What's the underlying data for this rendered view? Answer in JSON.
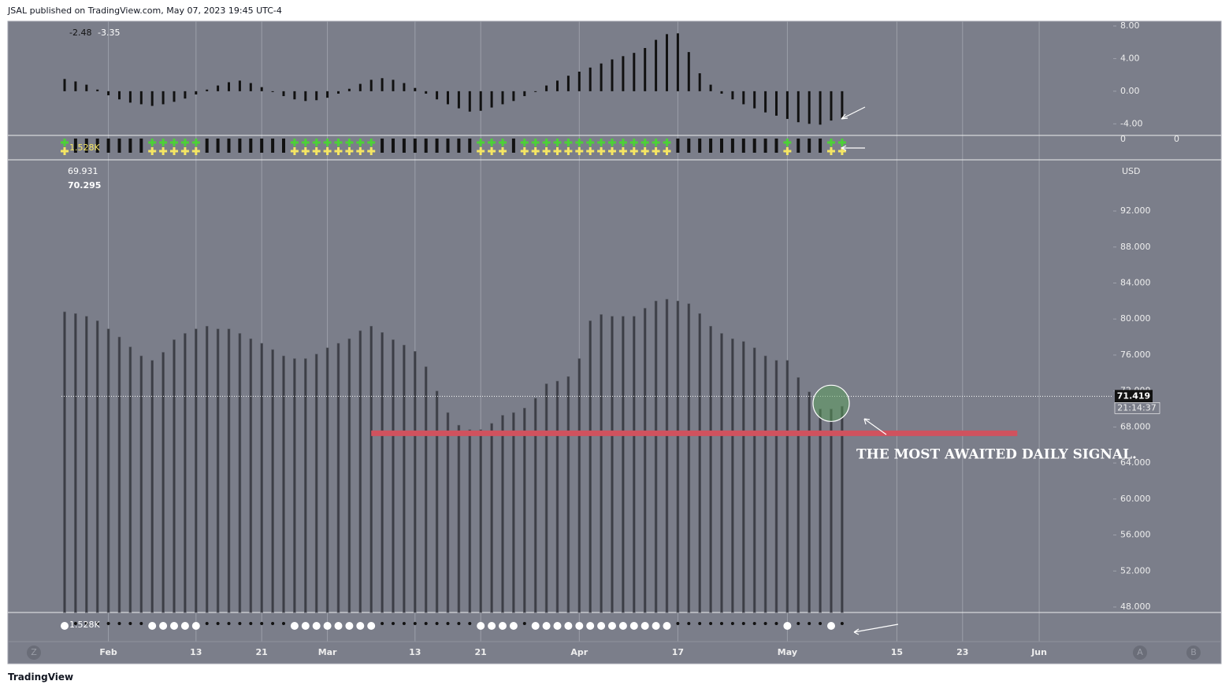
{
  "header": {
    "text": "JSAL published on TradingView.com, May 07, 2023 19:45 UTC-4"
  },
  "footer": {
    "text": "TradingView"
  },
  "controls": {
    "left": [
      "Z"
    ],
    "right": [
      "A",
      "B"
    ]
  },
  "chart_data": [
    {
      "type": "bar",
      "legend_values": [
        "-2.48",
        "-3.35"
      ],
      "color": "#111111",
      "values": [
        1.5,
        1.2,
        0.8,
        0.2,
        -0.5,
        -1.0,
        -1.4,
        -1.6,
        -1.8,
        -1.6,
        -1.3,
        -0.9,
        -0.4,
        0.2,
        0.7,
        1.1,
        1.3,
        1.0,
        0.5,
        -0.1,
        -0.6,
        -1.0,
        -1.2,
        -1.1,
        -0.8,
        -0.3,
        0.3,
        0.9,
        1.4,
        1.6,
        1.4,
        1.0,
        0.4,
        -0.3,
        -1.0,
        -1.6,
        -2.1,
        -2.5,
        -2.4,
        -2.0,
        -1.6,
        -1.2,
        -0.6,
        0.0,
        0.7,
        1.3,
        1.9,
        2.4,
        2.9,
        3.4,
        3.9,
        4.3,
        4.7,
        5.3,
        6.3,
        7.0,
        7.1,
        4.8,
        2.2,
        0.8,
        -0.3,
        -1.0,
        -1.6,
        -2.1,
        -2.6,
        -3.0,
        -3.4,
        -3.8,
        -4.0,
        -4.1,
        -3.6,
        -3.35
      ],
      "ylim": [
        -5.42,
        8.58
      ],
      "yticks": [
        {
          "value": 8,
          "label": "8.00"
        },
        {
          "value": 4,
          "label": "4.00"
        },
        {
          "value": 0,
          "label": "0.00"
        },
        {
          "value": -4,
          "label": "-4.00"
        }
      ]
    },
    {
      "type": "bar",
      "legend_values": [
        "69.931",
        "70.295"
      ],
      "currency": "USD",
      "color": "#3c3e46",
      "values": [
        80.8,
        80.6,
        80.3,
        79.8,
        78.9,
        78.0,
        76.9,
        75.9,
        75.4,
        76.3,
        77.7,
        78.4,
        78.9,
        79.2,
        78.9,
        78.9,
        78.4,
        77.8,
        77.3,
        76.6,
        75.9,
        75.6,
        75.6,
        76.1,
        76.8,
        77.3,
        77.8,
        78.7,
        79.2,
        78.5,
        77.7,
        77.1,
        76.4,
        74.7,
        72.0,
        69.6,
        68.2,
        67.7,
        67.7,
        68.4,
        69.3,
        69.6,
        70.1,
        71.2,
        72.8,
        73.1,
        73.6,
        75.6,
        79.8,
        80.5,
        80.3,
        80.3,
        80.3,
        81.2,
        82.0,
        82.2,
        82.0,
        81.7,
        80.6,
        79.2,
        78.4,
        77.8,
        77.5,
        76.8,
        75.9,
        75.4,
        75.4,
        73.5,
        71.9,
        70.0,
        70.0,
        70.3
      ],
      "ylim": [
        47.39,
        97.69
      ],
      "yticks": [
        {
          "value": 92,
          "label": "92.000"
        },
        {
          "value": 88,
          "label": "88.000"
        },
        {
          "value": 84,
          "label": "84.000"
        },
        {
          "value": 80,
          "label": "80.000"
        },
        {
          "value": 76,
          "label": "76.000"
        },
        {
          "value": 72,
          "label": "72.000"
        },
        {
          "value": 68,
          "label": "68.000"
        },
        {
          "value": 64,
          "label": "64.000"
        },
        {
          "value": 60,
          "label": "60.000"
        },
        {
          "value": 56,
          "label": "56.000"
        },
        {
          "value": 52,
          "label": "52.000"
        },
        {
          "value": 48,
          "label": "48.000"
        }
      ],
      "xticks": [
        {
          "value": 4,
          "label": "Feb"
        },
        {
          "value": 12,
          "label": "13"
        },
        {
          "value": 18,
          "label": "21"
        },
        {
          "value": 24,
          "label": "Mar"
        },
        {
          "value": 32,
          "label": "13"
        },
        {
          "value": 38,
          "label": "21"
        },
        {
          "value": 47,
          "label": "Apr"
        },
        {
          "value": 56,
          "label": "17"
        },
        {
          "value": 66,
          "label": "May"
        },
        {
          "value": 76,
          "label": "15"
        },
        {
          "value": 82,
          "label": "23"
        },
        {
          "value": 89,
          "label": "Jun"
        }
      ],
      "last_price": 71.419,
      "countdown": "21:14:37",
      "support_level": {
        "value": 67.3,
        "from": 28,
        "to": 87,
        "color": "#d0525e"
      },
      "annotation": "THE MOST AWAITED DAILY SIGNAL."
    },
    {
      "type": "signal",
      "legend_label": "1.528K",
      "scale_labels": [
        "0",
        "0"
      ],
      "plus": [
        true,
        false,
        false,
        false,
        false,
        false,
        false,
        false,
        true,
        true,
        true,
        true,
        true,
        false,
        false,
        false,
        false,
        false,
        false,
        false,
        false,
        true,
        true,
        true,
        true,
        true,
        true,
        true,
        true,
        false,
        false,
        false,
        false,
        false,
        false,
        false,
        false,
        false,
        true,
        true,
        true,
        false,
        true,
        true,
        true,
        true,
        true,
        true,
        true,
        true,
        true,
        true,
        true,
        true,
        true,
        true,
        false,
        false,
        false,
        false,
        false,
        false,
        false,
        false,
        false,
        false,
        true,
        false,
        false,
        false,
        true,
        true
      ]
    },
    {
      "type": "dots",
      "legend_label": "1.528K",
      "large": [
        true,
        false,
        false,
        false,
        false,
        false,
        false,
        false,
        true,
        true,
        true,
        true,
        true,
        false,
        false,
        false,
        false,
        false,
        false,
        false,
        false,
        true,
        true,
        true,
        true,
        true,
        true,
        true,
        true,
        false,
        false,
        false,
        false,
        false,
        false,
        false,
        false,
        false,
        true,
        true,
        true,
        true,
        false,
        true,
        true,
        true,
        true,
        true,
        true,
        true,
        true,
        true,
        true,
        true,
        true,
        true,
        false,
        false,
        false,
        false,
        false,
        false,
        false,
        false,
        false,
        false,
        true,
        false,
        false,
        false,
        true,
        false
      ]
    }
  ]
}
